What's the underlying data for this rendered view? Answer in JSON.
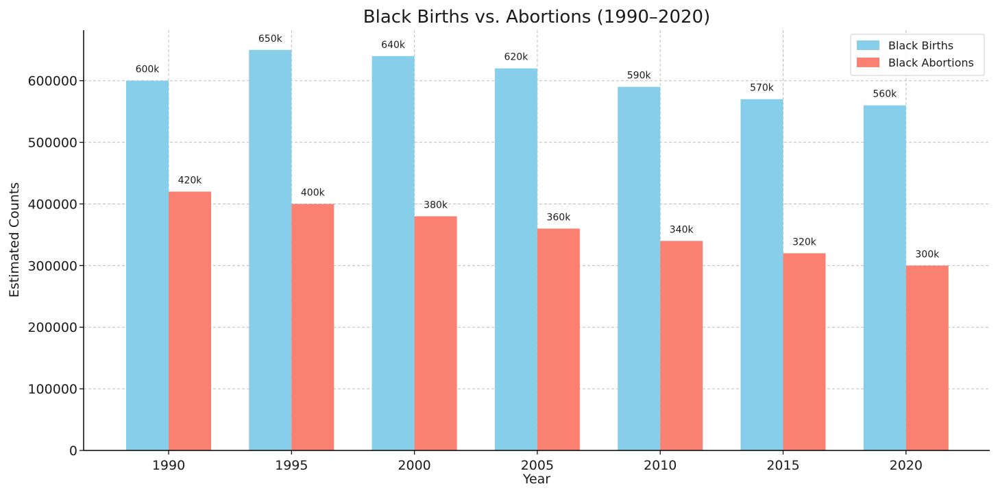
{
  "chart_data": {
    "type": "bar",
    "title": "Black Births vs. Abortions (1990–2020)",
    "xlabel": "Year",
    "ylabel": "Estimated Counts",
    "categories": [
      "1990",
      "1995",
      "2000",
      "2005",
      "2010",
      "2015",
      "2020"
    ],
    "series": [
      {
        "name": "Black Births",
        "color": "#87CEEB",
        "values": [
          600000,
          650000,
          640000,
          620000,
          590000,
          570000,
          560000
        ],
        "labels": [
          "600k",
          "650k",
          "640k",
          "620k",
          "590k",
          "570k",
          "560k"
        ]
      },
      {
        "name": "Black Abortions",
        "color": "#FA8072",
        "values": [
          420000,
          400000,
          380000,
          360000,
          340000,
          320000,
          300000
        ],
        "labels": [
          "420k",
          "400k",
          "380k",
          "360k",
          "340k",
          "320k",
          "300k"
        ]
      }
    ],
    "ylim": [
      0,
      682000
    ],
    "yticks": [
      0,
      100000,
      200000,
      300000,
      400000,
      500000,
      600000
    ],
    "ytick_labels": [
      "0",
      "100000",
      "200000",
      "300000",
      "400000",
      "500000",
      "600000"
    ],
    "grid": true,
    "legend_position": "top-right"
  }
}
